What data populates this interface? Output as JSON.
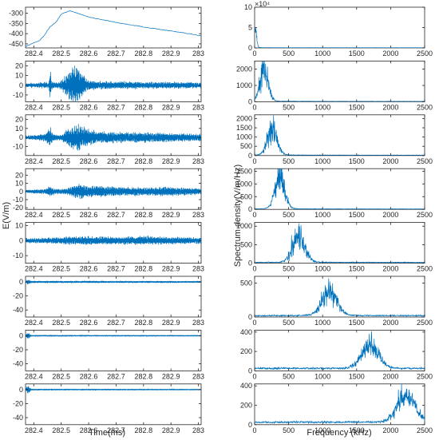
{
  "colors": {
    "line": "#0072BD",
    "axis": "#262626",
    "background": "#ffffff"
  },
  "chart_data": {
    "type": "line",
    "title": "",
    "layout": "8 rows x 2 columns",
    "left_column": {
      "xlabel": "Time(ms)",
      "ylabel": "E(V/m)",
      "xlim": [
        282.37,
        283.01
      ],
      "xticks": [
        282.4,
        282.5,
        282.6,
        282.7,
        282.8,
        282.9,
        283
      ],
      "xtick_labels": [
        "282.4",
        "282.5",
        "282.6",
        "282.7",
        "282.8",
        "282.9",
        "283"
      ],
      "panels": [
        {
          "ylim": [
            -470,
            -270
          ],
          "yticks": [
            -450,
            -400,
            -350,
            -300
          ],
          "ytick_labels": [
            "-450",
            "-400",
            "-350",
            "-300"
          ],
          "signal": {
            "kind": "envelope",
            "x": [
              282.37,
              282.42,
              282.44,
              282.46,
              282.48,
              282.5,
              282.53,
              282.6,
              282.7,
              282.8,
              282.9,
              283.01
            ],
            "y": [
              -462,
              -435,
              -405,
              -365,
              -345,
              -305,
              -287,
              -318,
              -345,
              -367,
              -387,
              -410
            ]
          }
        },
        {
          "ylim": [
            -17,
            25
          ],
          "yticks": [
            -10,
            0,
            10,
            20
          ],
          "ytick_labels": [
            "-10",
            "0",
            "10",
            "20"
          ],
          "signal": {
            "kind": "oscillation",
            "base": 0,
            "noise": 2,
            "envelope": [
              [
                282.37,
                2
              ],
              [
                282.455,
                3
              ],
              [
                282.46,
                20
              ],
              [
                282.465,
                4
              ],
              [
                282.49,
                3
              ],
              [
                282.5,
                6
              ],
              [
                282.52,
                12
              ],
              [
                282.55,
                23
              ],
              [
                282.58,
                12
              ],
              [
                282.6,
                5
              ],
              [
                282.65,
                4
              ],
              [
                283.01,
                3
              ]
            ]
          }
        },
        {
          "ylim": [
            -20,
            25
          ],
          "yticks": [
            -10,
            0,
            10,
            20
          ],
          "ytick_labels": [
            "-10",
            "0",
            "10",
            "20"
          ],
          "signal": {
            "kind": "oscillation",
            "base": 0,
            "noise": 1.5,
            "envelope": [
              [
                282.37,
                2
              ],
              [
                282.44,
                4
              ],
              [
                282.46,
                13
              ],
              [
                282.47,
                4
              ],
              [
                282.5,
                3
              ],
              [
                282.52,
                9
              ],
              [
                282.56,
                16
              ],
              [
                282.59,
                11
              ],
              [
                282.63,
                7
              ],
              [
                282.7,
                6
              ],
              [
                282.8,
                6
              ],
              [
                282.9,
                5
              ],
              [
                283.01,
                4
              ]
            ]
          }
        },
        {
          "ylim": [
            -22,
            28
          ],
          "yticks": [
            -20,
            -10,
            0,
            10,
            20
          ],
          "ytick_labels": [
            "-20",
            "-10",
            "0",
            "10",
            "20"
          ],
          "signal": {
            "kind": "oscillation",
            "base": 0,
            "noise": 1.2,
            "envelope": [
              [
                282.37,
                2
              ],
              [
                282.44,
                3
              ],
              [
                282.46,
                7
              ],
              [
                282.48,
                3
              ],
              [
                282.52,
                4
              ],
              [
                282.56,
                10
              ],
              [
                282.6,
                8
              ],
              [
                282.7,
                6
              ],
              [
                282.8,
                5
              ],
              [
                282.9,
                6
              ],
              [
                283.01,
                4
              ]
            ]
          }
        },
        {
          "ylim": [
            -15,
            12
          ],
          "yticks": [
            -10,
            0,
            10
          ],
          "ytick_labels": [
            "-10",
            "0",
            "10"
          ],
          "signal": {
            "kind": "oscillation",
            "base": 0,
            "noise": 0.8,
            "envelope": [
              [
                282.37,
                1.5
              ],
              [
                282.45,
                2
              ],
              [
                282.5,
                2.5
              ],
              [
                282.6,
                3
              ],
              [
                282.7,
                2.5
              ],
              [
                282.8,
                3
              ],
              [
                282.9,
                2.5
              ],
              [
                283.01,
                2
              ]
            ]
          }
        },
        {
          "ylim": [
            -50,
            8
          ],
          "yticks": [
            -40,
            -20,
            0
          ],
          "ytick_labels": [
            "-40",
            "-20",
            "0"
          ],
          "signal": {
            "kind": "oscillation",
            "base": 0,
            "noise": 0.5,
            "envelope": [
              [
                282.37,
                1.5
              ],
              [
                282.38,
                4
              ],
              [
                282.39,
                1.5
              ],
              [
                283.01,
                1.2
              ]
            ]
          }
        },
        {
          "ylim": [
            -50,
            8
          ],
          "yticks": [
            -40,
            -20,
            0
          ],
          "ytick_labels": [
            "-40",
            "-20",
            "0"
          ],
          "signal": {
            "kind": "oscillation",
            "base": 0,
            "noise": 0.4,
            "envelope": [
              [
                282.37,
                1.2
              ],
              [
                282.38,
                5
              ],
              [
                282.39,
                1
              ],
              [
                283.01,
                0.8
              ]
            ]
          }
        },
        {
          "ylim": [
            -50,
            8
          ],
          "yticks": [
            -40,
            -20,
            0
          ],
          "ytick_labels": [
            "-40",
            "-20",
            "0"
          ],
          "signal": {
            "kind": "oscillation",
            "base": 0,
            "noise": 0.4,
            "envelope": [
              [
                282.37,
                1.2
              ],
              [
                282.38,
                7
              ],
              [
                282.39,
                1
              ],
              [
                283.01,
                0.8
              ]
            ]
          }
        }
      ]
    },
    "right_column": {
      "xlabel": "Frequency (kHz)",
      "ylabel": "Spectrum density(V/m/Hz)",
      "xlim": [
        0,
        2500
      ],
      "xticks": [
        0,
        500,
        1000,
        1500,
        2000,
        2500
      ],
      "xtick_labels": [
        "0",
        "500",
        "1000",
        "1500",
        "2000",
        "2500"
      ],
      "panels": [
        {
          "ylim": [
            0,
            10
          ],
          "yticks": [
            0,
            5,
            10
          ],
          "ytick_labels": [
            "0",
            "5",
            "10"
          ],
          "exponent_label": "×10⁴",
          "signal": {
            "kind": "spectrum",
            "peak": 8,
            "peak_height": 4.5,
            "width": 20,
            "floor": 0.05,
            "noise": 0.3
          }
        },
        {
          "ylim": [
            0,
            2500
          ],
          "yticks": [
            0,
            1000,
            2000
          ],
          "ytick_labels": [
            "0",
            "1000",
            "2000"
          ],
          "signal": {
            "kind": "spectrum",
            "peak": 140,
            "peak_height": 1800,
            "width": 60,
            "floor": 20,
            "noise": 0.4
          }
        },
        {
          "ylim": [
            0,
            2200
          ],
          "yticks": [
            0,
            500,
            1000,
            1500,
            2000
          ],
          "ytick_labels": [
            "0",
            "500",
            "1000",
            "1500",
            "2000"
          ],
          "signal": {
            "kind": "spectrum",
            "peak": 260,
            "peak_height": 1400,
            "width": 70,
            "floor": 20,
            "noise": 0.45
          }
        },
        {
          "ylim": [
            0,
            1600
          ],
          "yticks": [
            0,
            500,
            1000,
            1500
          ],
          "ytick_labels": [
            "0",
            "500",
            "1000",
            "1500"
          ],
          "signal": {
            "kind": "spectrum",
            "peak": 370,
            "peak_height": 1200,
            "width": 70,
            "floor": 15,
            "noise": 0.45
          }
        },
        {
          "ylim": [
            0,
            1100
          ],
          "yticks": [
            0,
            500,
            1000
          ],
          "ytick_labels": [
            "0",
            "500",
            "1000"
          ],
          "signal": {
            "kind": "spectrum",
            "peak": 650,
            "peak_height": 700,
            "width": 90,
            "floor": 20,
            "noise": 0.45
          }
        },
        {
          "ylim": [
            0,
            600
          ],
          "yticks": [
            0,
            500
          ],
          "ytick_labels": [
            "0",
            "500"
          ],
          "signal": {
            "kind": "spectrum",
            "peak": 1100,
            "peak_height": 350,
            "width": 110,
            "floor": 20,
            "noise": 0.4
          }
        },
        {
          "ylim": [
            0,
            420
          ],
          "yticks": [
            0,
            200,
            400
          ],
          "ytick_labels": [
            "0",
            "200",
            "400"
          ],
          "signal": {
            "kind": "spectrum",
            "peak": 1700,
            "peak_height": 240,
            "width": 120,
            "floor": 25,
            "noise": 0.35
          }
        },
        {
          "ylim": [
            0,
            420
          ],
          "yticks": [
            0,
            200,
            400
          ],
          "ytick_labels": [
            "0",
            "200",
            "400"
          ],
          "signal": {
            "kind": "spectrum",
            "peak": 2230,
            "peak_height": 270,
            "width": 130,
            "floor": 25,
            "noise": 0.35
          }
        }
      ]
    }
  }
}
